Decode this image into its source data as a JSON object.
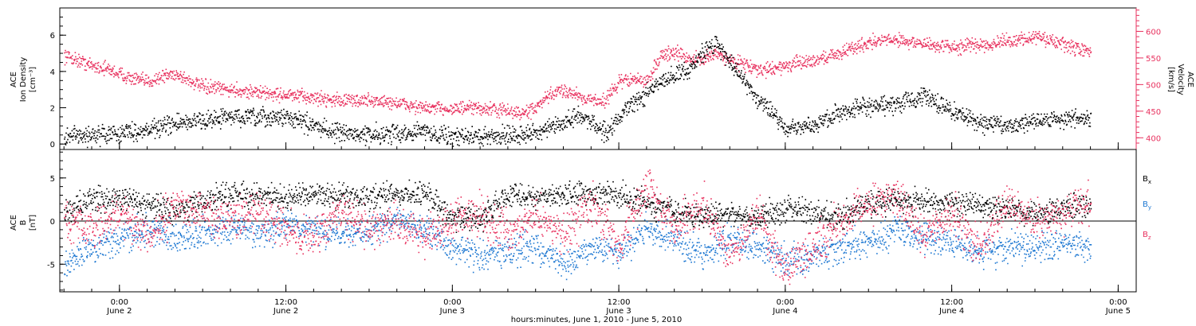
{
  "xaxis": {
    "ticks": [
      {
        "t": 0,
        "time": "0:00",
        "date": "June 2"
      },
      {
        "t": 12,
        "time": "12:00",
        "date": "June 2"
      },
      {
        "t": 24,
        "time": "0:00",
        "date": "June 3"
      },
      {
        "t": 36,
        "time": "12:00",
        "date": "June 3"
      },
      {
        "t": 48,
        "time": "0:00",
        "date": "June 4"
      },
      {
        "t": 60,
        "time": "12:00",
        "date": "June 4"
      },
      {
        "t": 72,
        "time": "0:00",
        "date": "June 5"
      }
    ],
    "title": "hours:minutes, June  1, 2010 - June  5, 2010"
  },
  "colors": {
    "black": "#000000",
    "red": "#e8325f",
    "blue": "#1e78d2",
    "axis": "#000000"
  },
  "chart_data": [
    {
      "type": "scatter",
      "ylabel_left": [
        "ACE",
        "Ion Density",
        "[cm⁻³]"
      ],
      "ylabel_right": [
        "ACE",
        "Velocity",
        "[km/s]"
      ],
      "x_units": "hours from 0:00 June 2, 2010",
      "xlim": [
        -4.3,
        73.3
      ],
      "ylim_left": [
        -0.3,
        7.5
      ],
      "yticks_left": [
        0,
        2,
        4,
        6
      ],
      "ylim_right": [
        378,
        644
      ],
      "yticks_right": [
        400,
        450,
        500,
        550,
        600
      ],
      "series": [
        {
          "color": "black",
          "axis": "left",
          "x": [
            -4,
            -2,
            0,
            2,
            4,
            6,
            8,
            10,
            12,
            14,
            16,
            18,
            20,
            22,
            24,
            26,
            28,
            30,
            32,
            33,
            34,
            35,
            36,
            37,
            38,
            39,
            40,
            41,
            42,
            43,
            44,
            45,
            46,
            47,
            48,
            50,
            52,
            54,
            56,
            58,
            60,
            62,
            64,
            66,
            68,
            70
          ],
          "y": [
            0.4,
            0.5,
            0.6,
            0.8,
            1.1,
            1.3,
            1.5,
            1.4,
            1.5,
            1.0,
            0.6,
            0.5,
            0.6,
            0.7,
            0.4,
            0.4,
            0.5,
            0.6,
            1.1,
            1.6,
            1.2,
            0.6,
            1.5,
            2.2,
            2.8,
            3.4,
            3.8,
            4.1,
            5.0,
            5.6,
            4.5,
            3.5,
            2.5,
            1.8,
            0.8,
            1.0,
            1.8,
            2.0,
            2.2,
            2.6,
            1.8,
            1.2,
            1.0,
            1.3,
            1.4,
            1.3
          ]
        },
        {
          "color": "red",
          "axis": "right",
          "x": [
            -4,
            -3,
            -2,
            -1,
            0,
            1,
            2,
            3,
            4,
            6,
            8,
            10,
            12,
            14,
            16,
            18,
            20,
            22,
            24,
            26,
            28,
            29,
            30,
            31,
            32,
            33,
            34,
            35,
            36,
            37,
            38,
            39,
            40,
            41,
            42,
            43,
            44,
            45,
            46,
            47,
            48,
            50,
            52,
            54,
            56,
            58,
            60,
            62,
            64,
            66,
            68,
            70
          ],
          "y": [
            555,
            545,
            535,
            530,
            520,
            510,
            505,
            515,
            520,
            495,
            490,
            485,
            480,
            475,
            470,
            470,
            465,
            455,
            455,
            455,
            450,
            445,
            455,
            480,
            490,
            480,
            470,
            470,
            505,
            510,
            505,
            555,
            560,
            550,
            545,
            560,
            545,
            540,
            525,
            530,
            535,
            545,
            560,
            580,
            585,
            575,
            570,
            575,
            580,
            590,
            575,
            560
          ]
        }
      ]
    },
    {
      "type": "scatter",
      "ylabel_left": [
        "ACE",
        "B",
        "[nT]"
      ],
      "x_units": "hours from 0:00 June 2, 2010",
      "xlim": [
        -4.3,
        73.3
      ],
      "ylim": [
        -8.2,
        8.3
      ],
      "yticks": [
        -5,
        0,
        5
      ],
      "zero_line": true,
      "legend_position": "right",
      "series": [
        {
          "name": "B",
          "sub": "x",
          "color": "black",
          "x": [
            -4,
            -2,
            0,
            2,
            4,
            6,
            8,
            10,
            12,
            14,
            16,
            18,
            20,
            22,
            24,
            26,
            28,
            30,
            32,
            34,
            36,
            38,
            40,
            42,
            44,
            46,
            48,
            50,
            52,
            54,
            56,
            58,
            60,
            62,
            64,
            66,
            68,
            70
          ],
          "y": [
            1,
            2.5,
            2.8,
            2,
            1,
            2.5,
            3,
            3,
            2.5,
            3,
            3,
            2.8,
            3,
            3.2,
            0.5,
            0.3,
            3,
            2.8,
            3,
            3.2,
            3,
            2,
            1,
            0.5,
            1,
            0.5,
            1.5,
            1,
            0.5,
            2,
            2.5,
            2.2,
            2,
            1.8,
            1.2,
            1,
            1.5,
            1.8
          ]
        },
        {
          "name": "B",
          "sub": "y",
          "color": "blue",
          "x": [
            -4,
            -2,
            0,
            2,
            4,
            6,
            8,
            10,
            12,
            14,
            16,
            18,
            20,
            22,
            24,
            26,
            28,
            30,
            32,
            34,
            36,
            38,
            40,
            42,
            44,
            46,
            48,
            50,
            52,
            54,
            56,
            58,
            60,
            62,
            64,
            66,
            68,
            70
          ],
          "y": [
            -5,
            -3,
            -2,
            -1,
            -2,
            -1.5,
            -1,
            -1.5,
            -0.5,
            -1,
            -1.5,
            -1,
            0,
            -1,
            -3,
            -4,
            -3.5,
            -3,
            -5,
            -3,
            -3.5,
            -1,
            -2,
            -4,
            -2,
            -3,
            -4.5,
            -4,
            -3,
            -2.5,
            -1,
            -2,
            -2.5,
            -3.5,
            -3,
            -3.2,
            -2.5,
            -3
          ]
        },
        {
          "name": "B",
          "sub": "z",
          "color": "red",
          "x": [
            -4,
            -2,
            0,
            2,
            4,
            6,
            8,
            10,
            12,
            14,
            16,
            18,
            20,
            22,
            24,
            26,
            28,
            30,
            32,
            34,
            36,
            38,
            40,
            42,
            44,
            46,
            48,
            50,
            52,
            54,
            56,
            58,
            60,
            62,
            64,
            66,
            68,
            70
          ],
          "y": [
            0,
            -1,
            1,
            -2,
            2,
            1,
            0,
            1.5,
            -1,
            -2,
            1,
            -1,
            0,
            -2,
            0,
            1,
            -1.5,
            1,
            -2,
            2,
            -3,
            4,
            -1,
            2,
            -4,
            1,
            -6,
            -3,
            0,
            2,
            3,
            -2,
            1,
            -3,
            2,
            0,
            1,
            2
          ]
        }
      ]
    }
  ]
}
